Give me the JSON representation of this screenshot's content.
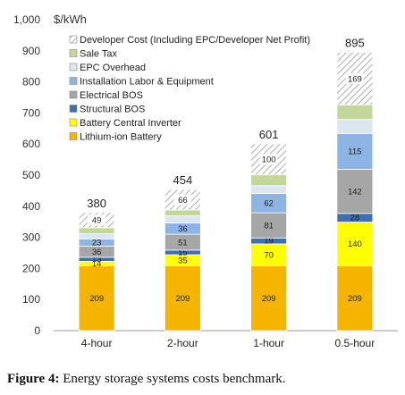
{
  "chart_data": {
    "type": "bar",
    "stacked": true,
    "unit_label": "$/kWh",
    "ylim": [
      0,
      1000
    ],
    "yticks": [
      "0",
      "100",
      "200",
      "300",
      "400",
      "500",
      "600",
      "700",
      "800",
      "900",
      "1,000"
    ],
    "categories": [
      "4-hour",
      "2-hour",
      "1-hour",
      "0.5-hour"
    ],
    "totals": [
      "380",
      "454",
      "601",
      "895"
    ],
    "legend_position": "top-left",
    "series": [
      {
        "name": "Lithium-ion Battery",
        "color": "#F5B400",
        "pattern": "solid",
        "values": [
          209,
          209,
          209,
          209
        ],
        "labels": [
          "209",
          "209",
          "209",
          "209"
        ]
      },
      {
        "name": "Battery Central Inverter",
        "color": "#FFFF00",
        "pattern": "solid",
        "values": [
          14,
          35,
          70,
          140
        ],
        "labels": [
          "14",
          "35",
          "70",
          "140"
        ]
      },
      {
        "name": "Structural BOS",
        "color": "#3E6FB0",
        "pattern": "solid",
        "values": [
          13,
          15,
          19,
          28
        ],
        "labels": [
          "13",
          "15",
          "19",
          "28"
        ]
      },
      {
        "name": "Electrical BOS",
        "color": "#A6A6A6",
        "pattern": "solid",
        "values": [
          36,
          51,
          81,
          142
        ],
        "labels": [
          "36",
          "51",
          "81",
          "142"
        ]
      },
      {
        "name": "Installation Labor & Equipment",
        "color": "#8DB4E2",
        "pattern": "solid",
        "values": [
          23,
          36,
          62,
          115
        ],
        "labels": [
          "23",
          "36",
          "62",
          "115"
        ]
      },
      {
        "name": "EPC Overhead",
        "color": "#DCE6F2",
        "pattern": "solid",
        "values": [
          17,
          23,
          25,
          45
        ],
        "labels": [
          "",
          "",
          "",
          ""
        ]
      },
      {
        "name": "Sale Tax",
        "color": "#C4D79B",
        "pattern": "solid",
        "values": [
          19,
          19,
          35,
          47
        ],
        "labels": [
          "",
          "",
          "",
          ""
        ]
      },
      {
        "name": "Developer Cost (Including EPC/Developer Net Profit)",
        "color": "#FFFFFF",
        "pattern": "hatch",
        "values": [
          49,
          66,
          100,
          169
        ],
        "labels": [
          "49",
          "66",
          "100",
          "169"
        ]
      }
    ]
  },
  "caption": {
    "prefix": "Figure 4:",
    "text": " Energy storage systems costs benchmark."
  }
}
